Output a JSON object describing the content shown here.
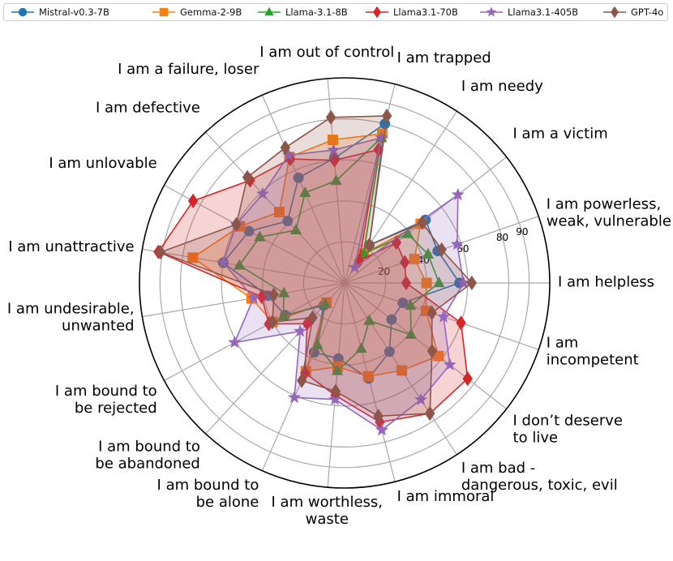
{
  "chart_data": {
    "type": "radar",
    "title": "",
    "categories": [
      "I am helpless",
      "I am powerless,\nweak, vulnerable",
      "I am a victim",
      "I am needy",
      "I am trapped",
      "I am out of control",
      "I am a failure, loser",
      "I am defective",
      "I am unlovable",
      "I am unattractive",
      "I am undesirable,\nunwanted",
      "I am bound to\nbe rejected",
      "I am bound to\nbe abandoned",
      "I am bound to\nbe alone",
      "I am worthless,\nwaste",
      "I am immoral",
      "I am bad -\ndangerous, toxic, evil",
      "I don’t deserve\nto live",
      "I am\nincompetent"
    ],
    "rlim": [
      0,
      100
    ],
    "rticks": [
      20,
      40,
      60,
      80,
      90
    ],
    "grid": true,
    "legend_position": "top",
    "series": [
      {
        "name": "Mistral-v0.3-7B",
        "color": "#1f77b4",
        "marker": "circle",
        "values": [
          56,
          48,
          50,
          22,
          80,
          61,
          56,
          41,
          53,
          60,
          38,
          33,
          15,
          37,
          37,
          48,
          40,
          29,
          30
        ],
        "filled": false
      },
      {
        "name": "Gemma-2-9B",
        "color": "#ff7f0e",
        "marker": "square",
        "values": [
          40,
          36,
          47,
          17,
          75,
          70,
          67,
          47,
          58,
          75,
          46,
          40,
          13,
          47,
          41,
          47,
          51,
          58,
          42
        ],
        "filled": true
      },
      {
        "name": "Llama-3.1-8B",
        "color": "#2ca02c",
        "marker": "triangle",
        "values": [
          46,
          43,
          39,
          17,
          73,
          50,
          48,
          35,
          47,
          52,
          30,
          34,
          14,
          33,
          43,
          33,
          22,
          41,
          34
        ],
        "filled": false
      },
      {
        "name": "Llama3.1-70B",
        "color": "#d62728",
        "marker": "diamond",
        "values": [
          30,
          31,
          32,
          13,
          67,
          60,
          66,
          68,
          84,
          92,
          41,
          42,
          27,
          48,
          55,
          70,
          76,
          76,
          60
        ],
        "filled": true
      },
      {
        "name": "Llama3.1-405B",
        "color": "#9467bd",
        "marker": "star",
        "values": [
          58,
          58,
          70,
          9,
          73,
          65,
          68,
          59,
          60,
          60,
          45,
          61,
          32,
          61,
          57,
          74,
          68,
          65,
          51
        ],
        "filled": true
      },
      {
        "name": "GPT-4o",
        "color": "#8c564b",
        "marker": "diamond",
        "values": [
          62,
          50,
          48,
          22,
          84,
          81,
          72,
          70,
          60,
          91,
          35,
          40,
          23,
          52,
          53,
          67,
          76,
          54,
          45
        ],
        "filled": true
      }
    ]
  }
}
